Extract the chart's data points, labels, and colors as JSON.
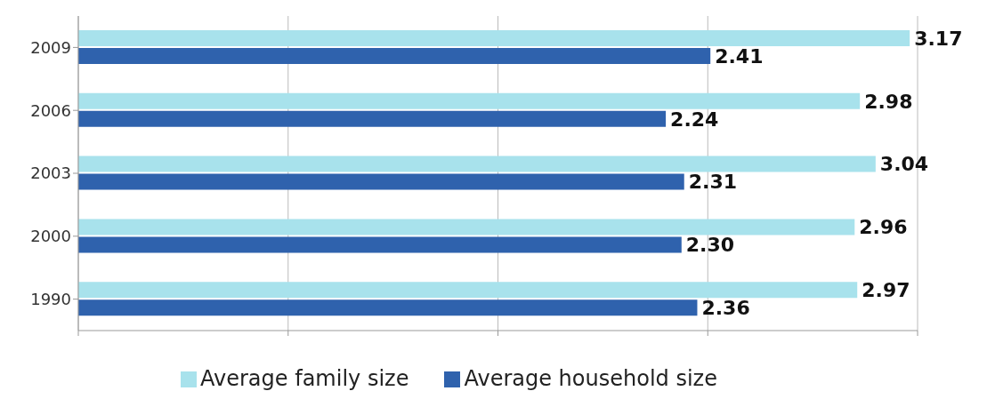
{
  "chart_data": {
    "type": "bar",
    "orientation": "horizontal",
    "categories": [
      "2009",
      "2006",
      "2003",
      "2000",
      "1990"
    ],
    "series": [
      {
        "name": "Average family size",
        "color": "#a8e2ec",
        "values": [
          3.17,
          2.98,
          3.04,
          2.96,
          2.97
        ],
        "value_labels": [
          "3.17",
          "2.98",
          "3.04",
          "2.96",
          "2.97"
        ]
      },
      {
        "name": "Average household size",
        "color": "#2f62ad",
        "values": [
          2.41,
          2.24,
          2.31,
          2.3,
          2.36
        ],
        "value_labels": [
          "2.41",
          "2.24",
          "2.31",
          "2.30",
          "2.36"
        ]
      }
    ],
    "grid": "x",
    "legend": "bottom",
    "tick_labels": "y"
  }
}
